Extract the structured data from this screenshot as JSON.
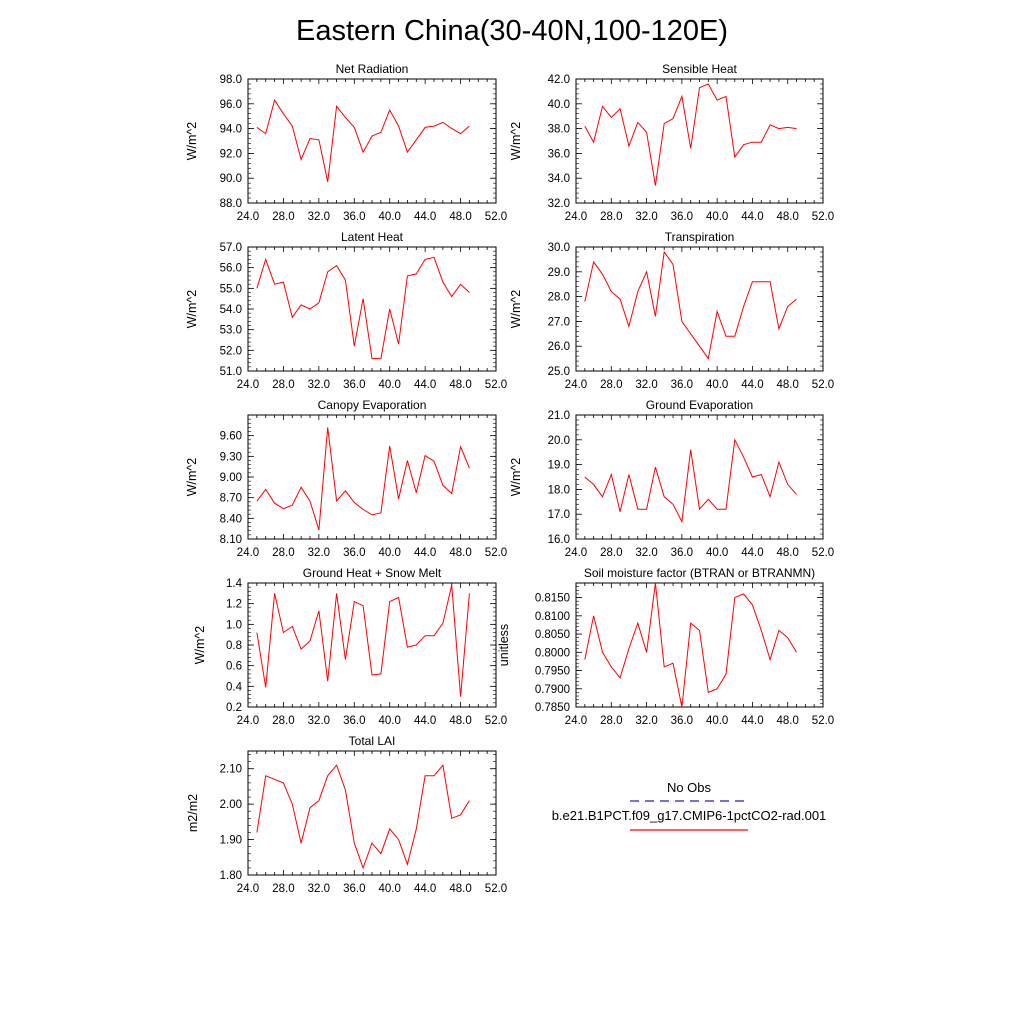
{
  "figure": {
    "title": "Eastern China(30-40N,100-120E)"
  },
  "legend": {
    "entries": [
      {
        "label": "No Obs",
        "color": "#1f1fbf",
        "style": "dashed"
      },
      {
        "label": "b.e21.B1PCT.f09_g17.CMIP6-1pctCO2-rad.001",
        "color": "#ff0000",
        "style": "solid"
      }
    ]
  },
  "chart_data": [
    {
      "type": "line",
      "title": "Net Radiation",
      "ylabel": "W/m^2",
      "xlim": [
        24,
        52
      ],
      "ylim": [
        88,
        98
      ],
      "xticks": [
        "24.0",
        "28.0",
        "32.0",
        "36.0",
        "40.0",
        "44.0",
        "48.0",
        "52.0"
      ],
      "yticks": [
        {
          "value": 88,
          "label": "88.0"
        },
        {
          "value": 90,
          "label": "90.0"
        },
        {
          "value": 92,
          "label": "92.0"
        },
        {
          "value": 94,
          "label": "94.0"
        },
        {
          "value": 96,
          "label": "96.0"
        },
        {
          "value": 98,
          "label": "98.0"
        }
      ],
      "series": [
        {
          "color": "#ff0000",
          "x": [
            25,
            26,
            27,
            28,
            29,
            30,
            31,
            32,
            33,
            34,
            35,
            36,
            37,
            38,
            39,
            40,
            41,
            42,
            43,
            44,
            45,
            46,
            47,
            48,
            49
          ],
          "values": [
            94.1,
            93.6,
            96.3,
            95.2,
            94.2,
            91.5,
            93.2,
            93.1,
            89.7,
            95.8,
            94.9,
            94.1,
            92.1,
            93.4,
            93.7,
            95.5,
            94.2,
            92.1,
            93.1,
            94.1,
            94.2,
            94.5,
            94.0,
            93.6,
            94.2
          ]
        }
      ]
    },
    {
      "type": "line",
      "title": "Sensible Heat",
      "ylabel": "W/m^2",
      "xlim": [
        24,
        52
      ],
      "ylim": [
        32,
        42
      ],
      "xticks": [
        "24.0",
        "28.0",
        "32.0",
        "36.0",
        "40.0",
        "44.0",
        "48.0",
        "52.0"
      ],
      "yticks": [
        {
          "value": 32,
          "label": "32.0"
        },
        {
          "value": 34,
          "label": "34.0"
        },
        {
          "value": 36,
          "label": "36.0"
        },
        {
          "value": 38,
          "label": "38.0"
        },
        {
          "value": 40,
          "label": "40.0"
        },
        {
          "value": 42,
          "label": "42.0"
        }
      ],
      "series": [
        {
          "color": "#ff0000",
          "x": [
            25,
            26,
            27,
            28,
            29,
            30,
            31,
            32,
            33,
            34,
            35,
            36,
            37,
            38,
            39,
            40,
            41,
            42,
            43,
            44,
            45,
            46,
            47,
            48,
            49
          ],
          "values": [
            38.2,
            36.9,
            39.8,
            38.9,
            39.6,
            36.6,
            38.5,
            37.7,
            33.4,
            38.4,
            38.8,
            40.6,
            36.4,
            41.3,
            41.6,
            40.3,
            40.6,
            35.7,
            36.7,
            36.9,
            36.9,
            38.3,
            38.0,
            38.1,
            38.0
          ]
        }
      ]
    },
    {
      "type": "line",
      "title": "Latent Heat",
      "ylabel": "W/m^2",
      "xlim": [
        24,
        52
      ],
      "ylim": [
        51,
        57
      ],
      "xticks": [
        "24.0",
        "28.0",
        "32.0",
        "36.0",
        "40.0",
        "44.0",
        "48.0",
        "52.0"
      ],
      "yticks": [
        {
          "value": 51,
          "label": "51.0"
        },
        {
          "value": 52,
          "label": "52.0"
        },
        {
          "value": 53,
          "label": "53.0"
        },
        {
          "value": 54,
          "label": "54.0"
        },
        {
          "value": 55,
          "label": "55.0"
        },
        {
          "value": 56,
          "label": "56.0"
        },
        {
          "value": 57,
          "label": "57.0"
        }
      ],
      "series": [
        {
          "color": "#ff0000",
          "x": [
            25,
            26,
            27,
            28,
            29,
            30,
            31,
            32,
            33,
            34,
            35,
            36,
            37,
            38,
            39,
            40,
            41,
            42,
            43,
            44,
            45,
            46,
            47,
            48,
            49
          ],
          "values": [
            55.0,
            56.4,
            55.2,
            55.3,
            53.6,
            54.2,
            54.0,
            54.3,
            55.8,
            56.1,
            55.4,
            52.2,
            54.5,
            51.6,
            51.6,
            54.0,
            52.3,
            55.6,
            55.7,
            56.4,
            56.5,
            55.3,
            54.6,
            55.2,
            54.8
          ]
        }
      ]
    },
    {
      "type": "line",
      "title": "Transpiration",
      "ylabel": "W/m^2",
      "xlim": [
        24,
        52
      ],
      "ylim": [
        25,
        30
      ],
      "xticks": [
        "24.0",
        "28.0",
        "32.0",
        "36.0",
        "40.0",
        "44.0",
        "48.0",
        "52.0"
      ],
      "yticks": [
        {
          "value": 25,
          "label": "25.0"
        },
        {
          "value": 26,
          "label": "26.0"
        },
        {
          "value": 27,
          "label": "27.0"
        },
        {
          "value": 28,
          "label": "28.0"
        },
        {
          "value": 29,
          "label": "29.0"
        },
        {
          "value": 30,
          "label": "30.0"
        }
      ],
      "series": [
        {
          "color": "#ff0000",
          "x": [
            25,
            26,
            27,
            28,
            29,
            30,
            31,
            32,
            33,
            34,
            35,
            36,
            37,
            38,
            39,
            40,
            41,
            42,
            43,
            44,
            45,
            46,
            47,
            48,
            49
          ],
          "values": [
            27.8,
            29.4,
            28.9,
            28.2,
            27.9,
            26.8,
            28.2,
            29.0,
            27.2,
            29.8,
            29.3,
            27.0,
            26.5,
            26.0,
            25.5,
            27.4,
            26.4,
            26.4,
            27.6,
            28.6,
            28.6,
            28.6,
            26.7,
            27.6,
            27.9
          ]
        }
      ]
    },
    {
      "type": "line",
      "title": "Canopy Evaporation",
      "ylabel": "W/m^2",
      "xlim": [
        24,
        52
      ],
      "ylim": [
        8.1,
        9.9
      ],
      "xticks": [
        "24.0",
        "28.0",
        "32.0",
        "36.0",
        "40.0",
        "44.0",
        "48.0",
        "52.0"
      ],
      "yticks": [
        {
          "value": 8.1,
          "label": "8.10"
        },
        {
          "value": 8.4,
          "label": "8.40"
        },
        {
          "value": 8.7,
          "label": "8.70"
        },
        {
          "value": 9.0,
          "label": "9.00"
        },
        {
          "value": 9.3,
          "label": "9.30"
        },
        {
          "value": 9.6,
          "label": "9.60"
        }
      ],
      "series": [
        {
          "color": "#ff0000",
          "x": [
            25,
            26,
            27,
            28,
            29,
            30,
            31,
            32,
            33,
            34,
            35,
            36,
            37,
            38,
            39,
            40,
            41,
            42,
            43,
            44,
            45,
            46,
            47,
            48,
            49
          ],
          "values": [
            8.65,
            8.82,
            8.62,
            8.54,
            8.59,
            8.85,
            8.65,
            8.23,
            9.72,
            8.65,
            8.8,
            8.63,
            8.53,
            8.45,
            8.48,
            9.45,
            8.68,
            9.24,
            8.77,
            9.31,
            9.23,
            8.88,
            8.76,
            9.44,
            9.13
          ]
        }
      ]
    },
    {
      "type": "line",
      "title": "Ground Evaporation",
      "ylabel": "W/m^2",
      "xlim": [
        24,
        52
      ],
      "ylim": [
        16,
        21
      ],
      "xticks": [
        "24.0",
        "28.0",
        "32.0",
        "36.0",
        "40.0",
        "44.0",
        "48.0",
        "52.0"
      ],
      "yticks": [
        {
          "value": 16,
          "label": "16.0"
        },
        {
          "value": 17,
          "label": "17.0"
        },
        {
          "value": 18,
          "label": "18.0"
        },
        {
          "value": 19,
          "label": "19.0"
        },
        {
          "value": 20,
          "label": "20.0"
        },
        {
          "value": 21,
          "label": "21.0"
        }
      ],
      "series": [
        {
          "color": "#ff0000",
          "x": [
            25,
            26,
            27,
            28,
            29,
            30,
            31,
            32,
            33,
            34,
            35,
            36,
            37,
            38,
            39,
            40,
            41,
            42,
            43,
            44,
            45,
            46,
            47,
            48,
            49
          ],
          "values": [
            18.5,
            18.2,
            17.7,
            18.6,
            17.1,
            18.6,
            17.2,
            17.2,
            18.9,
            17.7,
            17.4,
            16.7,
            19.6,
            17.2,
            17.6,
            17.2,
            17.2,
            20.0,
            19.3,
            18.5,
            18.6,
            17.7,
            19.1,
            18.2,
            17.8
          ]
        }
      ]
    },
    {
      "type": "line",
      "title": "Ground Heat + Snow Melt",
      "ylabel": "W/m^2",
      "xlim": [
        24,
        52
      ],
      "ylim": [
        0.2,
        1.4
      ],
      "xticks": [
        "24.0",
        "28.0",
        "32.0",
        "36.0",
        "40.0",
        "44.0",
        "48.0",
        "52.0"
      ],
      "yticks": [
        {
          "value": 0.2,
          "label": "0.2"
        },
        {
          "value": 0.4,
          "label": "0.4"
        },
        {
          "value": 0.6,
          "label": "0.6"
        },
        {
          "value": 0.8,
          "label": "0.8"
        },
        {
          "value": 1.0,
          "label": "1.0"
        },
        {
          "value": 1.2,
          "label": "1.2"
        },
        {
          "value": 1.4,
          "label": "1.4"
        }
      ],
      "series": [
        {
          "color": "#ff0000",
          "x": [
            25,
            26,
            27,
            28,
            29,
            30,
            31,
            32,
            33,
            34,
            35,
            36,
            37,
            38,
            39,
            40,
            41,
            42,
            43,
            44,
            45,
            46,
            47,
            48,
            49
          ],
          "values": [
            0.92,
            0.39,
            1.3,
            0.92,
            0.98,
            0.76,
            0.84,
            1.13,
            0.45,
            1.3,
            0.66,
            1.22,
            1.18,
            0.51,
            0.52,
            1.22,
            1.26,
            0.78,
            0.8,
            0.89,
            0.89,
            1.01,
            1.38,
            0.3,
            1.3
          ]
        }
      ]
    },
    {
      "type": "line",
      "title": "Soil moisture factor (BTRAN or BTRANMN)",
      "ylabel": "unitless",
      "xlim": [
        24,
        52
      ],
      "ylim": [
        0.785,
        0.819
      ],
      "xticks": [
        "24.0",
        "28.0",
        "32.0",
        "36.0",
        "40.0",
        "44.0",
        "48.0",
        "52.0"
      ],
      "yticks": [
        {
          "value": 0.785,
          "label": "0.7850"
        },
        {
          "value": 0.79,
          "label": "0.7900"
        },
        {
          "value": 0.795,
          "label": "0.7950"
        },
        {
          "value": 0.8,
          "label": "0.8000"
        },
        {
          "value": 0.805,
          "label": "0.8050"
        },
        {
          "value": 0.81,
          "label": "0.8100"
        },
        {
          "value": 0.815,
          "label": "0.8150"
        }
      ],
      "series": [
        {
          "color": "#ff0000",
          "x": [
            25,
            26,
            27,
            28,
            29,
            30,
            31,
            32,
            33,
            34,
            35,
            36,
            37,
            38,
            39,
            40,
            41,
            42,
            43,
            44,
            45,
            46,
            47,
            48,
            49
          ],
          "values": [
            0.798,
            0.81,
            0.8,
            0.796,
            0.793,
            0.801,
            0.808,
            0.8,
            0.819,
            0.796,
            0.797,
            0.785,
            0.808,
            0.806,
            0.789,
            0.79,
            0.794,
            0.815,
            0.816,
            0.813,
            0.806,
            0.798,
            0.806,
            0.804,
            0.8
          ]
        }
      ]
    },
    {
      "type": "line",
      "title": "Total LAI",
      "ylabel": "m2/m2",
      "xlim": [
        24,
        52
      ],
      "ylim": [
        1.8,
        2.15
      ],
      "xticks": [
        "24.0",
        "28.0",
        "32.0",
        "36.0",
        "40.0",
        "44.0",
        "48.0",
        "52.0"
      ],
      "yticks": [
        {
          "value": 1.8,
          "label": "1.80"
        },
        {
          "value": 1.9,
          "label": "1.90"
        },
        {
          "value": 2.0,
          "label": "2.00"
        },
        {
          "value": 2.1,
          "label": "2.10"
        }
      ],
      "series": [
        {
          "color": "#ff0000",
          "x": [
            25,
            26,
            27,
            28,
            29,
            30,
            31,
            32,
            33,
            34,
            35,
            36,
            37,
            38,
            39,
            40,
            41,
            42,
            43,
            44,
            45,
            46,
            47,
            48,
            49
          ],
          "values": [
            1.92,
            2.08,
            2.07,
            2.06,
            2.0,
            1.89,
            1.99,
            2.01,
            2.08,
            2.11,
            2.04,
            1.89,
            1.82,
            1.89,
            1.86,
            1.93,
            1.9,
            1.83,
            1.93,
            2.08,
            2.08,
            2.11,
            1.96,
            1.97,
            2.01
          ]
        }
      ]
    }
  ]
}
